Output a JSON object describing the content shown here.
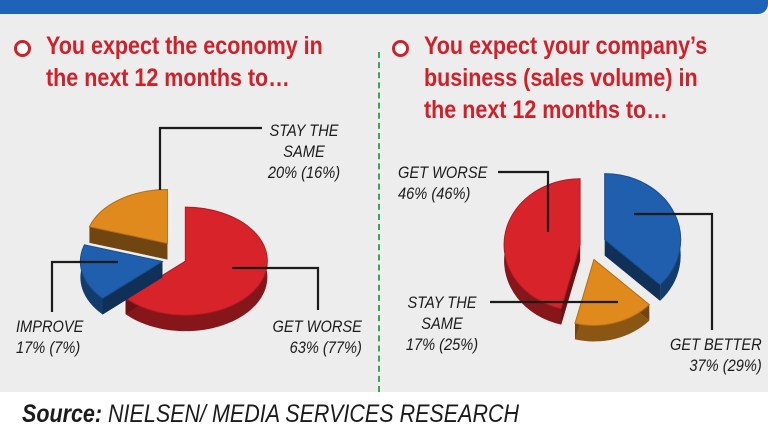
{
  "colors": {
    "topbar": "#1e63b8",
    "accent": "#d0202a",
    "divider": "#3aa655",
    "get_worse": "#d8232a",
    "improve": "#1f5fae",
    "stay_same": "#e08a1e"
  },
  "source": {
    "prefix": "Source:",
    "text": " NIELSEN/ MEDIA SERVICES RESEARCH"
  },
  "chart_data": [
    {
      "type": "pie",
      "title_lines": [
        "You expect the economy in",
        "the next 12 months to…"
      ],
      "slices": [
        {
          "label": "GET WORSE",
          "value": 63,
          "previous": 77,
          "display": "63% (77%)",
          "color": "#d8232a"
        },
        {
          "label": "IMPROVE",
          "value": 17,
          "previous": 7,
          "display": "17% (7%)",
          "color": "#1f5fae"
        },
        {
          "label_lines": [
            "STAY THE",
            "SAME"
          ],
          "label": "STAY THE SAME",
          "value": 20,
          "previous": 16,
          "display": "20% (16%)",
          "color": "#e08a1e"
        }
      ]
    },
    {
      "type": "pie",
      "title_lines": [
        "You expect your company’s",
        "business (sales volume) in",
        "the next 12 months to…"
      ],
      "slices": [
        {
          "label": "GET BETTER",
          "value": 37,
          "previous": 29,
          "display": "37% (29%)",
          "color": "#1f5fae"
        },
        {
          "label_lines": [
            "STAY THE",
            "SAME"
          ],
          "label": "STAY THE SAME",
          "value": 17,
          "previous": 25,
          "display": "17% (25%)",
          "color": "#e08a1e"
        },
        {
          "label": "GET WORSE",
          "value": 46,
          "previous": 46,
          "display": "46% (46%)",
          "color": "#d8232a"
        }
      ]
    }
  ]
}
